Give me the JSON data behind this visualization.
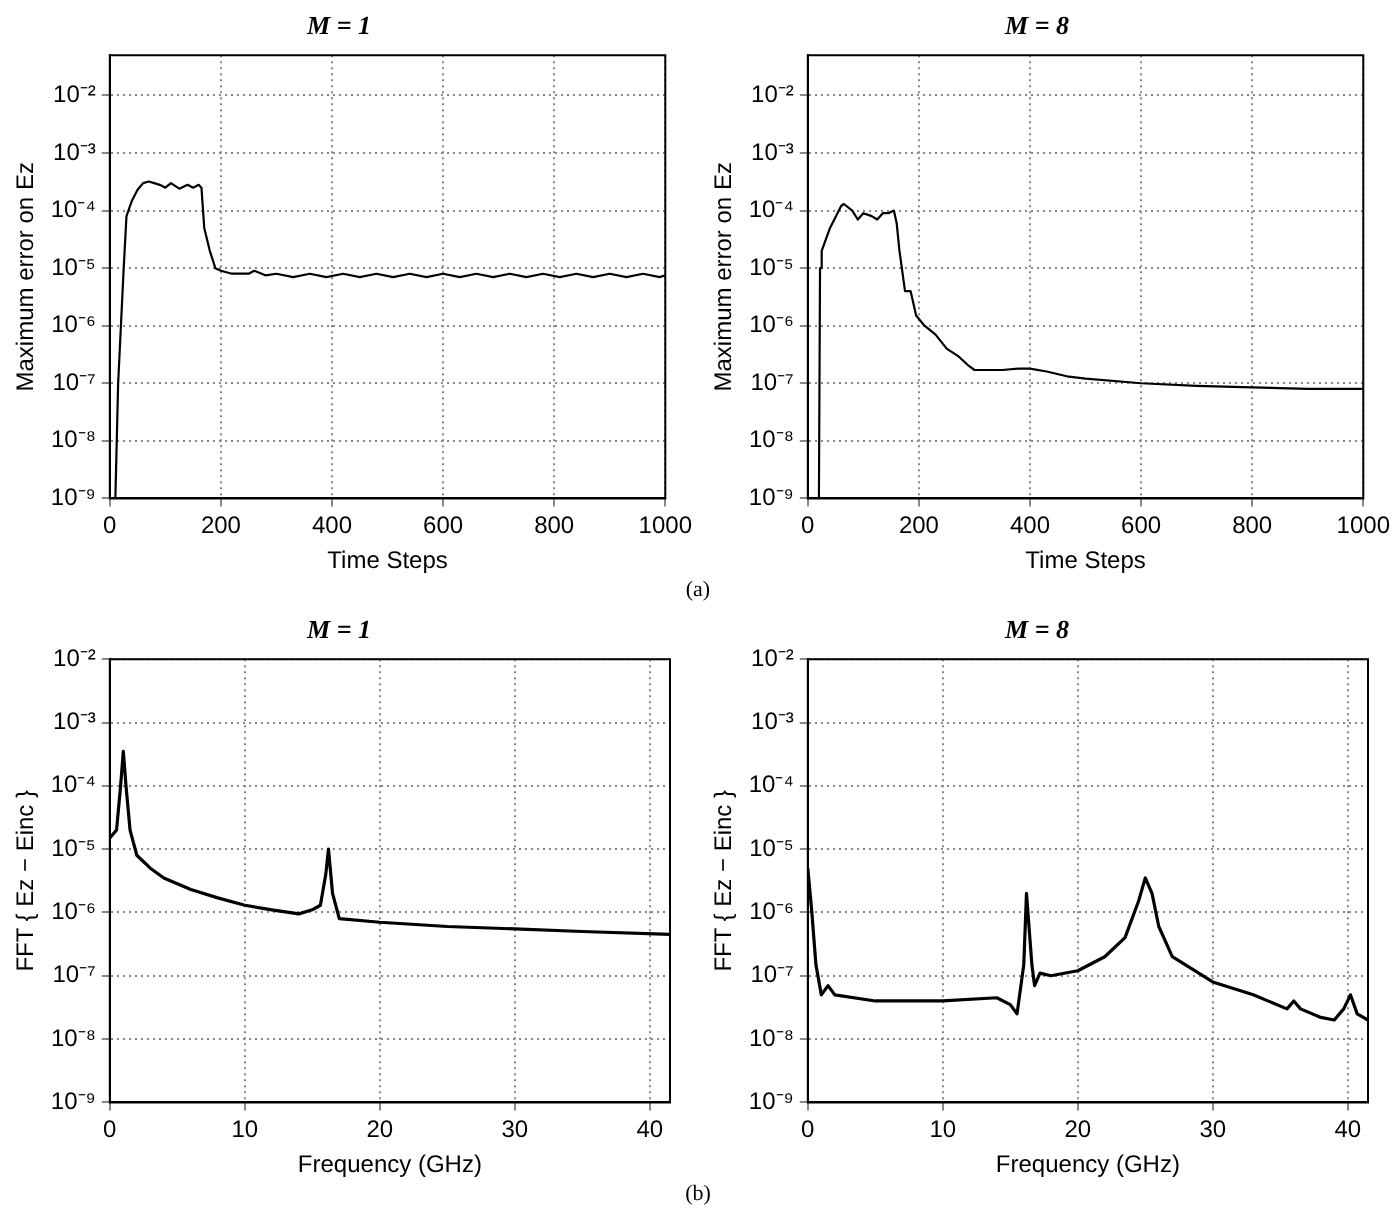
{
  "chart_data": [
    {
      "type": "line",
      "title": "M = 1",
      "xlabel": "Time Steps",
      "ylabel": "Maximum error on Ez",
      "log": "y",
      "grid": true,
      "marker": "none",
      "color": "#000000",
      "annotations": [
        "(a)"
      ],
      "xlim": [
        0,
        1000
      ],
      "xticks": [
        0,
        200,
        400,
        600,
        800,
        1000
      ],
      "ylim": [
        1e-09,
        0.05
      ],
      "yticks": [
        {
          "value": 1e-09,
          "label": "10⁻⁹"
        },
        {
          "value": 1e-08,
          "label": "10⁻⁸"
        },
        {
          "value": 1e-07,
          "label": "10⁻⁷"
        },
        {
          "value": 1e-06,
          "label": "10⁻⁶"
        },
        {
          "value": 1e-05,
          "label": "10⁻⁵"
        },
        {
          "value": 0.0001,
          "label": "10⁻⁴"
        },
        {
          "value": 0.001,
          "label": "10⁻³"
        },
        {
          "value": 0.01,
          "label": "10⁻²"
        }
      ],
      "x": [
        10,
        15,
        20,
        25,
        30,
        40,
        50,
        60,
        70,
        80,
        90,
        100,
        110,
        125,
        140,
        150,
        160,
        165,
        170,
        180,
        190,
        200,
        220,
        250,
        260,
        280,
        300,
        330,
        360,
        390,
        420,
        450,
        480,
        510,
        540,
        570,
        600,
        630,
        660,
        690,
        720,
        750,
        780,
        810,
        840,
        870,
        900,
        930,
        960,
        990,
        1000
      ],
      "values": [
        1e-09,
        1e-07,
        1e-06,
        1e-05,
        8e-05,
        0.00015,
        0.00023,
        0.0003,
        0.00032,
        0.0003,
        0.00028,
        0.00025,
        0.0003,
        0.00024,
        0.00028,
        0.00025,
        0.00028,
        0.00025,
        5e-05,
        2e-05,
        1e-05,
        9e-06,
        8e-06,
        8e-06,
        9e-06,
        7.5e-06,
        8e-06,
        7e-06,
        8e-06,
        7e-06,
        8e-06,
        7e-06,
        8e-06,
        7e-06,
        8e-06,
        7e-06,
        8e-06,
        7e-06,
        8e-06,
        7e-06,
        8e-06,
        7e-06,
        8e-06,
        7e-06,
        8e-06,
        7e-06,
        8e-06,
        7e-06,
        8e-06,
        7e-06,
        7.5e-06
      ]
    },
    {
      "type": "line",
      "title": "M = 8",
      "xlabel": "Time Steps",
      "ylabel": "Maximum error on Ez",
      "log": "y",
      "grid": true,
      "marker": "none",
      "color": "#000000",
      "xlim": [
        0,
        1000
      ],
      "xticks": [
        0,
        200,
        400,
        600,
        800,
        1000
      ],
      "ylim": [
        1e-09,
        0.05
      ],
      "yticks": [
        {
          "value": 1e-09,
          "label": "10⁻⁹"
        },
        {
          "value": 1e-08,
          "label": "10⁻⁸"
        },
        {
          "value": 1e-07,
          "label": "10⁻⁷"
        },
        {
          "value": 1e-06,
          "label": "10⁻⁶"
        },
        {
          "value": 1e-05,
          "label": "10⁻⁵"
        },
        {
          "value": 0.0001,
          "label": "10⁻⁴"
        },
        {
          "value": 0.001,
          "label": "10⁻³"
        },
        {
          "value": 0.01,
          "label": "10⁻²"
        }
      ],
      "x": [
        20,
        22,
        25,
        40,
        60,
        65,
        80,
        90,
        100,
        115,
        125,
        135,
        145,
        155,
        160,
        165,
        175,
        185,
        195,
        210,
        230,
        250,
        270,
        290,
        300,
        350,
        380,
        400,
        430,
        470,
        500,
        600,
        700,
        800,
        900,
        1000
      ],
      "values": [
        1e-09,
        1e-05,
        2e-05,
        5e-05,
        0.00012,
        0.00013,
        0.0001,
        7e-05,
        9e-05,
        8e-05,
        7e-05,
        9e-05,
        9e-05,
        0.0001,
        6e-05,
        2e-05,
        4e-06,
        4e-06,
        1.5e-06,
        1e-06,
        7e-07,
        4e-07,
        3e-07,
        2e-07,
        1.7e-07,
        1.7e-07,
        1.8e-07,
        1.8e-07,
        1.6e-07,
        1.3e-07,
        1.2e-07,
        1e-07,
        9e-08,
        8.5e-08,
        8e-08,
        8e-08
      ]
    },
    {
      "type": "line",
      "title": "M = 1",
      "xlabel": "Frequency (GHz)",
      "ylabel": "FFT { Ez − Einc }",
      "log": "y",
      "grid": true,
      "marker": "none",
      "color": "#000000",
      "annotations": [
        "(b)"
      ],
      "xlim": [
        0,
        41.5
      ],
      "xticks": [
        0,
        10,
        20,
        30,
        40
      ],
      "ylim": [
        1e-09,
        0.01
      ],
      "yticks": [
        {
          "value": 1e-09,
          "label": "10⁻⁹"
        },
        {
          "value": 1e-08,
          "label": "10⁻⁸"
        },
        {
          "value": 1e-07,
          "label": "10⁻⁷"
        },
        {
          "value": 1e-06,
          "label": "10⁻⁶"
        },
        {
          "value": 1e-05,
          "label": "10⁻⁵"
        },
        {
          "value": 0.0001,
          "label": "10⁻⁴"
        },
        {
          "value": 0.001,
          "label": "10⁻³"
        },
        {
          "value": 0.01,
          "label": "10⁻²"
        }
      ],
      "x": [
        0,
        0.5,
        0.8,
        1,
        1.2,
        1.5,
        2,
        3,
        4,
        6,
        8,
        10,
        12,
        14,
        15,
        15.6,
        16,
        16.2,
        16.5,
        17,
        20,
        25,
        30,
        35,
        41.5
      ],
      "values": [
        1.5e-05,
        2e-05,
        0.0001,
        0.00035,
        0.0001,
        2e-05,
        8e-06,
        5e-06,
        3.5e-06,
        2.3e-06,
        1.7e-06,
        1.3e-06,
        1.1e-06,
        9.5e-07,
        1.1e-06,
        1.3e-06,
        4e-06,
        1e-05,
        2e-06,
        8e-07,
        7e-07,
        6e-07,
        5.5e-07,
        5e-07,
        4.5e-07
      ]
    },
    {
      "type": "line",
      "title": "M = 8",
      "xlabel": "Frequency (GHz)",
      "ylabel": "FFT { Ez − Einc }",
      "log": "y",
      "grid": true,
      "marker": "none",
      "color": "#000000",
      "xlim": [
        0,
        41.5
      ],
      "xticks": [
        0,
        10,
        20,
        30,
        40
      ],
      "ylim": [
        1e-09,
        0.01
      ],
      "yticks": [
        {
          "value": 1e-09,
          "label": "10⁻⁹"
        },
        {
          "value": 1e-08,
          "label": "10⁻⁸"
        },
        {
          "value": 1e-07,
          "label": "10⁻⁷"
        },
        {
          "value": 1e-06,
          "label": "10⁻⁶"
        },
        {
          "value": 1e-05,
          "label": "10⁻⁵"
        },
        {
          "value": 0.0001,
          "label": "10⁻⁴"
        },
        {
          "value": 0.001,
          "label": "10⁻³"
        },
        {
          "value": 0.01,
          "label": "10⁻²"
        }
      ],
      "x": [
        0,
        0.3,
        0.6,
        1,
        1.5,
        2,
        5,
        10,
        14,
        15,
        15.5,
        16,
        16.2,
        16.6,
        16.8,
        17.2,
        18,
        20,
        22,
        23.5,
        24.5,
        25,
        25.5,
        26,
        27,
        30,
        33,
        35.5,
        36,
        36.5,
        38,
        39,
        39.7,
        40.2,
        40.7,
        41.5
      ],
      "values": [
        5e-06,
        1e-06,
        1.5e-07,
        5e-08,
        7e-08,
        5e-08,
        4e-08,
        4e-08,
        4.5e-08,
        3.5e-08,
        2.5e-08,
        1.5e-07,
        2e-06,
        1.5e-07,
        7e-08,
        1.1e-07,
        1e-07,
        1.2e-07,
        2e-07,
        4e-07,
        1.5e-06,
        3.5e-06,
        2e-06,
        6e-07,
        2e-07,
        8e-08,
        5e-08,
        3e-08,
        4e-08,
        3e-08,
        2.2e-08,
        2e-08,
        3e-08,
        5e-08,
        2.5e-08,
        2e-08
      ]
    }
  ]
}
